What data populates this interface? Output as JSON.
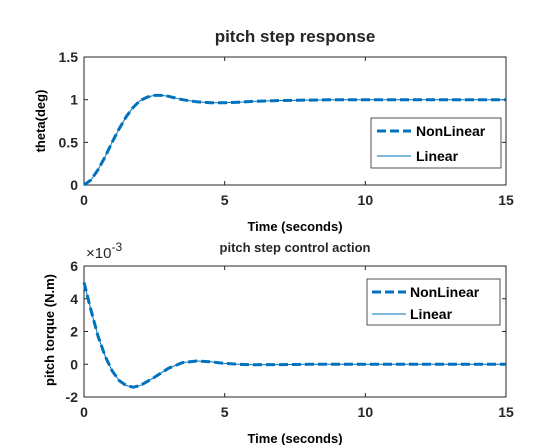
{
  "chart_data": [
    {
      "type": "line",
      "title": "pitch step response",
      "xlabel": "Time (seconds)",
      "ylabel": "theta(deg)",
      "xlim": [
        0,
        15
      ],
      "ylim": [
        0,
        1.5
      ],
      "xticks": [
        "0",
        "5",
        "10",
        "15"
      ],
      "yticks": [
        "0",
        "0.5",
        "1",
        "1.5"
      ],
      "legend_position": "right-center",
      "grid": false,
      "x": [
        0,
        0.25,
        0.5,
        0.75,
        1.0,
        1.25,
        1.5,
        1.75,
        2.0,
        2.25,
        2.5,
        2.75,
        3.0,
        3.5,
        4.0,
        4.5,
        5.0,
        5.5,
        6.0,
        7.0,
        8.0,
        9.0,
        10.0,
        11.0,
        12.0,
        13.0,
        14.0,
        15.0
      ],
      "series": [
        {
          "name": "NonLinear",
          "style": "dashed",
          "color": "#0072BD",
          "values": [
            0,
            0.06,
            0.18,
            0.33,
            0.5,
            0.66,
            0.8,
            0.91,
            0.99,
            1.03,
            1.05,
            1.05,
            1.04,
            1.0,
            0.975,
            0.965,
            0.965,
            0.97,
            0.98,
            0.99,
            0.995,
            1.0,
            1.0,
            1.0,
            1.0,
            1.0,
            1.0,
            1.0
          ]
        },
        {
          "name": "Linear",
          "style": "solid",
          "color": "#0072BD",
          "values": [
            0,
            0.06,
            0.18,
            0.33,
            0.5,
            0.66,
            0.8,
            0.91,
            0.99,
            1.03,
            1.05,
            1.05,
            1.04,
            1.0,
            0.975,
            0.965,
            0.965,
            0.97,
            0.98,
            0.99,
            0.995,
            1.0,
            1.0,
            1.0,
            1.0,
            1.0,
            1.0,
            1.0
          ]
        }
      ]
    },
    {
      "type": "line",
      "title": "pitch step control action",
      "xlabel": "Time (seconds)",
      "ylabel": "pitch torque (N.m)",
      "y_exponent_label": "×10",
      "y_exponent_power": "-3",
      "xlim": [
        0,
        15
      ],
      "ylim": [
        -2,
        6
      ],
      "xticks": [
        "0",
        "5",
        "10",
        "15"
      ],
      "yticks": [
        "-2",
        "0",
        "2",
        "4",
        "6"
      ],
      "legend_position": "top-right",
      "grid": false,
      "x": [
        0,
        0.25,
        0.5,
        0.75,
        1.0,
        1.25,
        1.5,
        1.75,
        2.0,
        2.5,
        3.0,
        3.5,
        4.0,
        4.5,
        5.0,
        5.5,
        6.0,
        7.0,
        8.0,
        9.0,
        10.0,
        11.0,
        12.0,
        13.0,
        14.0,
        15.0
      ],
      "series": [
        {
          "name": "NonLinear",
          "style": "dashed",
          "color": "#0072BD",
          "values": [
            5.0,
            3.3,
            1.7,
            0.5,
            -0.4,
            -1.0,
            -1.3,
            -1.4,
            -1.3,
            -0.8,
            -0.25,
            0.1,
            0.2,
            0.15,
            0.05,
            0.0,
            -0.03,
            -0.02,
            0.0,
            0.0,
            0.0,
            0.0,
            0.0,
            0.0,
            0.0,
            0.0
          ]
        },
        {
          "name": "Linear",
          "style": "solid",
          "color": "#0072BD",
          "values": [
            5.0,
            3.3,
            1.7,
            0.5,
            -0.4,
            -1.0,
            -1.3,
            -1.4,
            -1.3,
            -0.8,
            -0.25,
            0.1,
            0.2,
            0.15,
            0.05,
            0.0,
            -0.03,
            -0.02,
            0.0,
            0.0,
            0.0,
            0.0,
            0.0,
            0.0,
            0.0,
            0.0
          ]
        }
      ]
    }
  ]
}
